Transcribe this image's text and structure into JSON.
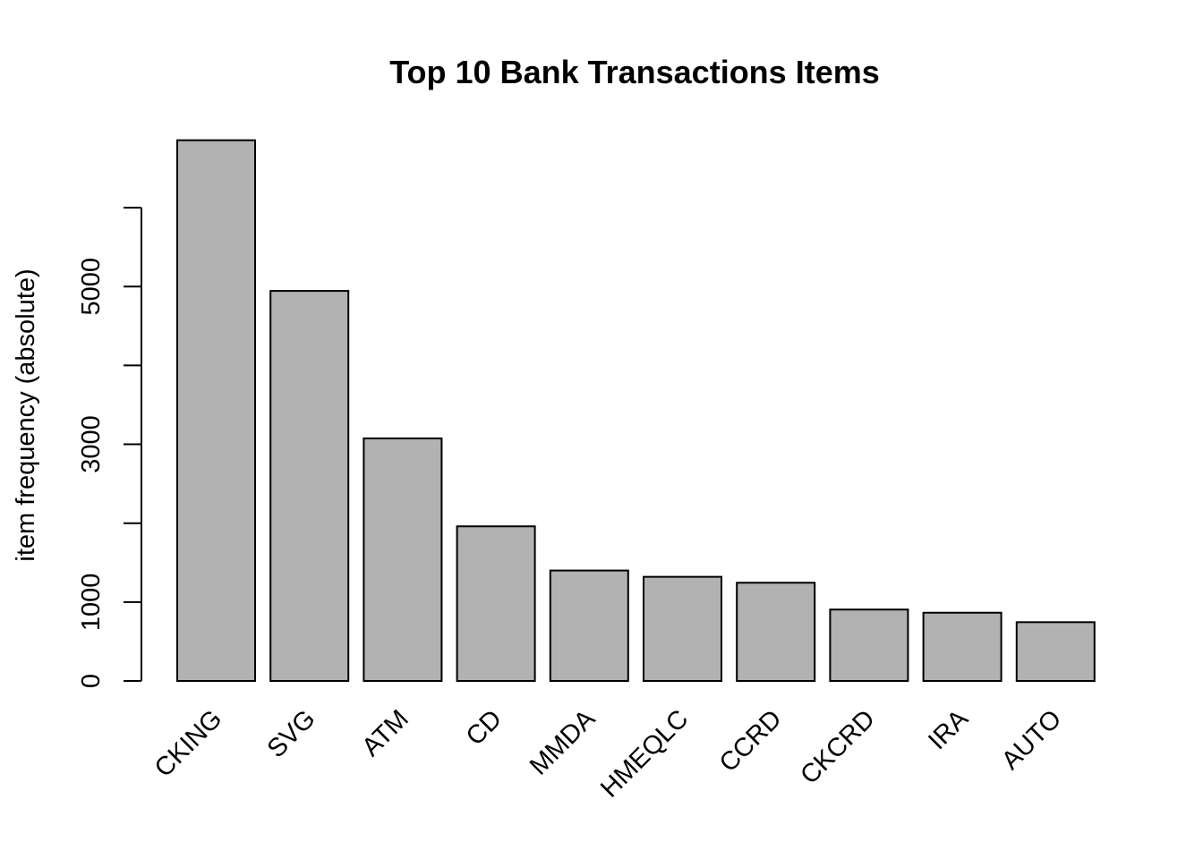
{
  "chart_data": {
    "type": "bar",
    "title": "Top 10 Bank Transactions Items",
    "ylabel": "item frequency (absolute)",
    "xlabel": "",
    "categories": [
      "CKING",
      "SVG",
      "ATM",
      "CD",
      "MMDA",
      "HMEQLC",
      "CCRD",
      "CKCRD",
      "IRA",
      "AUTO"
    ],
    "values": [
      6855,
      4945,
      3075,
      1960,
      1400,
      1320,
      1245,
      905,
      865,
      745
    ],
    "ylim": [
      0,
      6855
    ],
    "yticks": [
      0,
      1000,
      2000,
      3000,
      4000,
      5000,
      6000
    ],
    "ytick_labels": [
      "0",
      "1000",
      "",
      "3000",
      "",
      "5000",
      ""
    ],
    "bar_color": "#b2b2b2",
    "grid": false,
    "legend": "none"
  }
}
